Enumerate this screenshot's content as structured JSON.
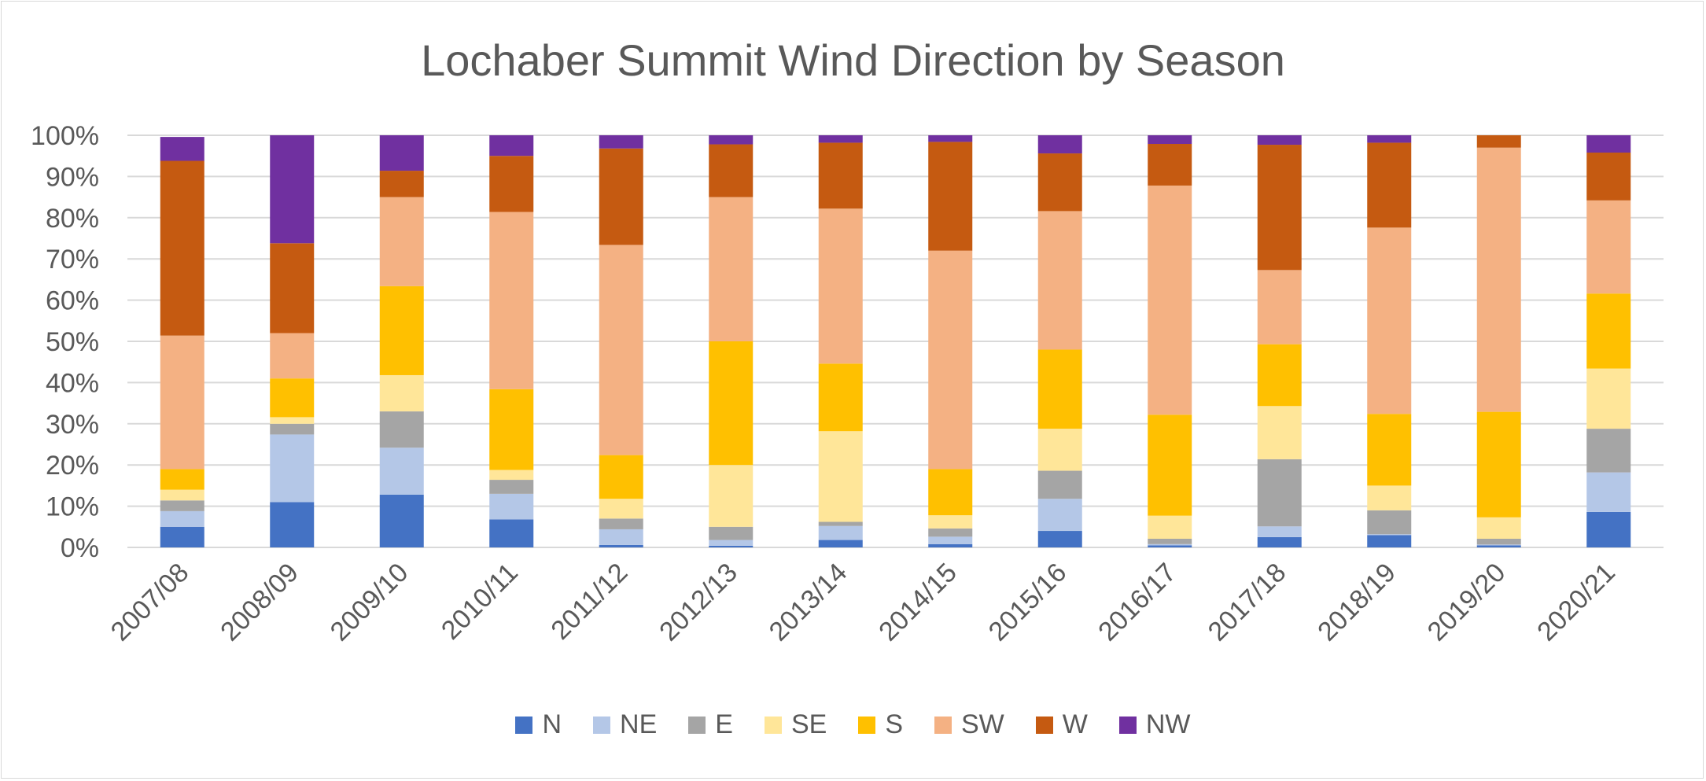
{
  "chart_data": {
    "type": "bar",
    "stacked": true,
    "percent": true,
    "title": "Lochaber Summit Wind Direction by Season",
    "xlabel": "",
    "ylabel": "",
    "ylim": [
      0,
      100
    ],
    "yticks": [
      "0%",
      "10%",
      "20%",
      "30%",
      "40%",
      "50%",
      "60%",
      "70%",
      "80%",
      "90%",
      "100%"
    ],
    "grid": true,
    "legend_position": "bottom",
    "categories": [
      "2007/08",
      "2008/09",
      "2009/10",
      "2010/11",
      "2011/12",
      "2012/13",
      "2013/14",
      "2014/15",
      "2015/16",
      "2016/17",
      "2017/18",
      "2018/19",
      "2019/20",
      "2020/21"
    ],
    "series": [
      {
        "name": "N",
        "color": "#4472c4",
        "values": [
          5,
          11,
          12.8,
          6.8,
          0.6,
          0.4,
          1.8,
          0.8,
          4,
          0.5,
          2.5,
          3,
          0.5,
          8.6
        ]
      },
      {
        "name": "NE",
        "color": "#b4c7e7",
        "values": [
          3.8,
          16.4,
          11.4,
          6.2,
          3.8,
          1.4,
          3.4,
          1.8,
          7.8,
          0.3,
          2.6,
          0.2,
          0.2,
          9.6
        ]
      },
      {
        "name": "E",
        "color": "#a5a5a5",
        "values": [
          2.6,
          2.6,
          8.8,
          3.4,
          2.6,
          3.2,
          1,
          2,
          6.8,
          1.3,
          16.3,
          5.8,
          1.4,
          10.6
        ]
      },
      {
        "name": "SE",
        "color": "#ffe699",
        "values": [
          2.6,
          1.6,
          8.8,
          2.4,
          4.8,
          15,
          22,
          3.2,
          10.2,
          5.6,
          12.9,
          6,
          5.2,
          14.6
        ]
      },
      {
        "name": "S",
        "color": "#ffc000",
        "values": [
          5,
          9.4,
          21.6,
          19.6,
          10.6,
          30,
          16.4,
          11.2,
          19.2,
          24.5,
          15,
          17.4,
          25.6,
          18.2
        ]
      },
      {
        "name": "SW",
        "color": "#f4b183",
        "values": [
          32.4,
          11,
          21.6,
          43,
          51,
          35,
          37.6,
          53,
          33.6,
          55.6,
          18,
          45.2,
          64.1,
          22.6
        ]
      },
      {
        "name": "W",
        "color": "#c55a11",
        "values": [
          42.4,
          21.8,
          6.4,
          13.6,
          23.4,
          12.8,
          16,
          26.4,
          14,
          10.1,
          30.4,
          20.6,
          3,
          11.6
        ]
      },
      {
        "name": "NW",
        "color": "#7030a0",
        "values": [
          5.8,
          26.2,
          8.6,
          5,
          3.2,
          2.2,
          1.8,
          1.6,
          4.4,
          2.1,
          2.3,
          1.8,
          0,
          4.2
        ]
      }
    ]
  }
}
